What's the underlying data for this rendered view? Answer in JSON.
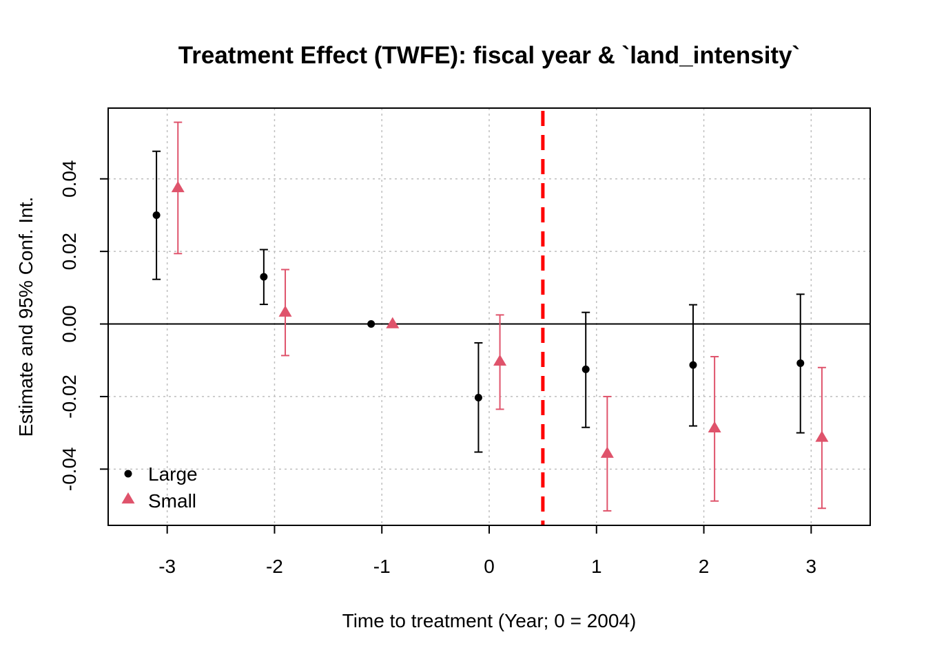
{
  "chart_data": {
    "type": "scatter",
    "title": "Treatment Effect (TWFE): fiscal year & `land_intensity`",
    "xlabel": "Time to treatment (Year; 0 = 2004)",
    "ylabel": "Estimate and 95% Conf. Int.",
    "xlim": [
      -3.55,
      3.55
    ],
    "ylim": [
      -0.0555,
      0.0595
    ],
    "xticks": [
      -3,
      -2,
      -1,
      0,
      1,
      2,
      3
    ],
    "xtick_labels": [
      "-3",
      "-2",
      "-1",
      "0",
      "1",
      "2",
      "3"
    ],
    "yticks": [
      -0.04,
      -0.02,
      0.0,
      0.02,
      0.04
    ],
    "ytick_labels": [
      "-0.04",
      "-0.02",
      "0.00",
      "0.02",
      "0.04"
    ],
    "grid": true,
    "reference_hline": 0,
    "treatment_vline": 0.5,
    "legend_position": "bottom-left",
    "series": [
      {
        "name": "Large",
        "marker": "circle",
        "color": "#000000",
        "x": [
          -3,
          -2,
          -1,
          0,
          1,
          2,
          3
        ],
        "y": [
          0.03,
          0.013,
          0.0,
          -0.0203,
          -0.0125,
          -0.0113,
          -0.0108
        ],
        "ci_low": [
          0.0123,
          0.0054,
          null,
          -0.0353,
          -0.0285,
          -0.0281,
          -0.03
        ],
        "ci_high": [
          0.0476,
          0.0205,
          null,
          -0.0052,
          0.0032,
          0.0053,
          0.0082
        ]
      },
      {
        "name": "Small",
        "marker": "triangle",
        "color": "#DF536B",
        "x": [
          -3,
          -2,
          -1,
          0,
          1,
          2,
          3
        ],
        "y": [
          0.0375,
          0.0032,
          0.0,
          -0.0103,
          -0.0357,
          -0.0287,
          -0.0313
        ],
        "ci_low": [
          0.0194,
          -0.0087,
          null,
          -0.0235,
          -0.0515,
          -0.0488,
          -0.0508
        ],
        "ci_high": [
          0.0556,
          0.015,
          null,
          0.0025,
          -0.02,
          -0.009,
          -0.012
        ]
      }
    ],
    "colors": {
      "vline": "#FF0000",
      "grid": "#BEBEBE",
      "axis": "#000000"
    }
  }
}
